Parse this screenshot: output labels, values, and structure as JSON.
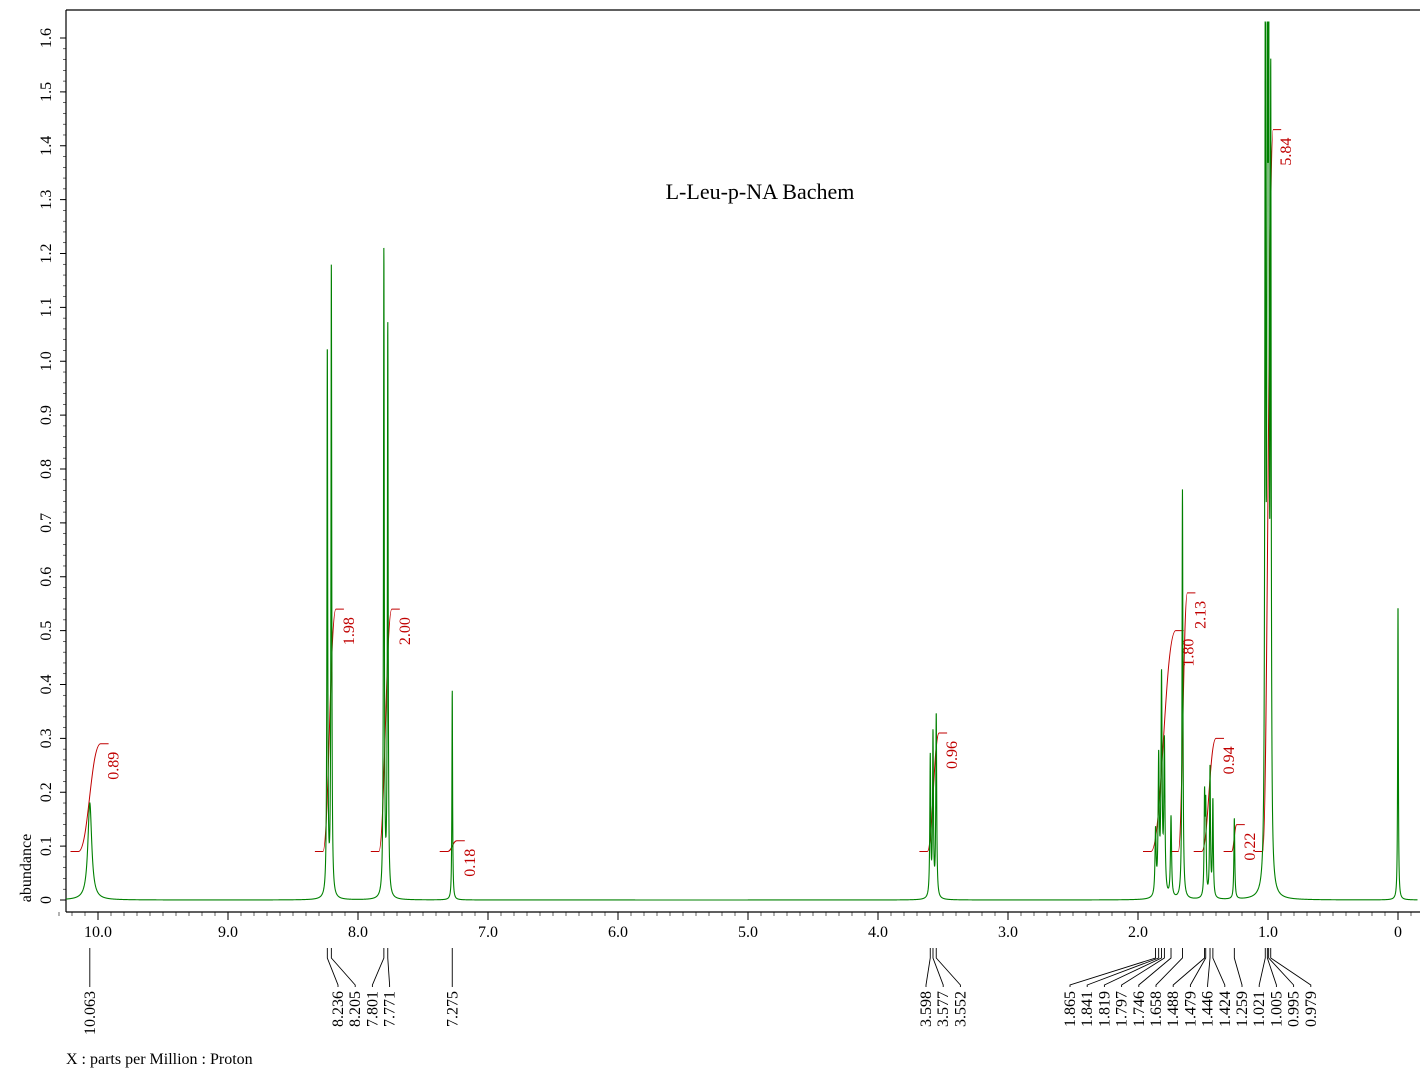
{
  "chart_data": {
    "type": "line",
    "title": "L-Leu-p-NA Bachem",
    "xlabel": "X : parts per Million : Proton",
    "ylabel": "abundance",
    "xlim": [
      10.35,
      -0.15
    ],
    "ylim": [
      -0.02,
      1.66
    ],
    "x_ticks": [
      "10.0",
      "9.0",
      "8.0",
      "7.0",
      "6.0",
      "5.0",
      "4.0",
      "3.0",
      "2.0",
      "1.0",
      "0"
    ],
    "y_ticks": [
      "0",
      "0.1",
      "0.2",
      "0.3",
      "0.4",
      "0.5",
      "0.6",
      "0.7",
      "0.8",
      "0.9",
      "1.0",
      "1.1",
      "1.2",
      "1.3",
      "1.4",
      "1.5",
      "1.6"
    ],
    "line_color": "#008000",
    "integral_color": "#c00000",
    "series": [
      {
        "peaks": [
          {
            "x": 10.063,
            "y": 0.18,
            "w": 0.018
          },
          {
            "x": 8.236,
            "y": 1.02,
            "w": 0.0035
          },
          {
            "x": 8.205,
            "y": 1.17,
            "w": 0.0035
          },
          {
            "x": 7.801,
            "y": 1.2,
            "w": 0.0035
          },
          {
            "x": 7.771,
            "y": 1.06,
            "w": 0.0035
          },
          {
            "x": 7.275,
            "y": 0.39,
            "w": 0.003
          },
          {
            "x": 3.598,
            "y": 0.26,
            "w": 0.004
          },
          {
            "x": 3.577,
            "y": 0.3,
            "w": 0.004
          },
          {
            "x": 3.552,
            "y": 0.34,
            "w": 0.004
          },
          {
            "x": 1.865,
            "y": 0.12,
            "w": 0.005
          },
          {
            "x": 1.841,
            "y": 0.25,
            "w": 0.005
          },
          {
            "x": 1.819,
            "y": 0.4,
            "w": 0.005
          },
          {
            "x": 1.797,
            "y": 0.28,
            "w": 0.005
          },
          {
            "x": 1.746,
            "y": 0.15,
            "w": 0.005
          },
          {
            "x": 1.658,
            "y": 0.76,
            "w": 0.004
          },
          {
            "x": 1.488,
            "y": 0.18,
            "w": 0.004
          },
          {
            "x": 1.479,
            "y": 0.16,
            "w": 0.004
          },
          {
            "x": 1.446,
            "y": 0.24,
            "w": 0.004
          },
          {
            "x": 1.424,
            "y": 0.18,
            "w": 0.004
          },
          {
            "x": 1.259,
            "y": 0.15,
            "w": 0.004
          },
          {
            "x": 1.021,
            "y": 1.64,
            "w": 0.004
          },
          {
            "x": 1.005,
            "y": 1.57,
            "w": 0.004
          },
          {
            "x": 0.995,
            "y": 1.65,
            "w": 0.004
          },
          {
            "x": 0.979,
            "y": 1.42,
            "w": 0.004
          },
          {
            "x": 0.0,
            "y": 0.55,
            "w": 0.003
          }
        ]
      }
    ],
    "peak_labels": [
      "10.063",
      "8.236",
      "8.205",
      "7.801",
      "7.771",
      "7.275",
      "3.598",
      "3.577",
      "3.552",
      "1.865",
      "1.841",
      "1.819",
      "1.797",
      "1.746",
      "1.658",
      "1.488",
      "1.479",
      "1.446",
      "1.424",
      "1.259",
      "1.021",
      "1.005",
      "0.995",
      "0.979"
    ],
    "integrals": [
      {
        "value": "0.89",
        "from": 10.15,
        "to": 9.98,
        "y0": 0.09,
        "y1": 0.29
      },
      {
        "value": "1.98",
        "from": 8.27,
        "to": 8.17,
        "y0": 0.09,
        "y1": 0.54
      },
      {
        "value": "2.00",
        "from": 7.84,
        "to": 7.74,
        "y0": 0.09,
        "y1": 0.54
      },
      {
        "value": "0.18",
        "from": 7.31,
        "to": 7.24,
        "y0": 0.09,
        "y1": 0.11
      },
      {
        "value": "0.96",
        "from": 3.62,
        "to": 3.53,
        "y0": 0.09,
        "y1": 0.31
      },
      {
        "value": "1.80",
        "from": 1.9,
        "to": 1.71,
        "y0": 0.09,
        "y1": 0.5
      },
      {
        "value": "2.13",
        "from": 1.69,
        "to": 1.62,
        "y0": 0.09,
        "y1": 0.57
      },
      {
        "value": "0.94",
        "from": 1.51,
        "to": 1.4,
        "y0": 0.09,
        "y1": 0.3
      },
      {
        "value": "0.22",
        "from": 1.28,
        "to": 1.24,
        "y0": 0.09,
        "y1": 0.14
      },
      {
        "value": "5.84",
        "from": 1.04,
        "to": 0.96,
        "y0": 0.09,
        "y1": 1.43
      }
    ]
  }
}
